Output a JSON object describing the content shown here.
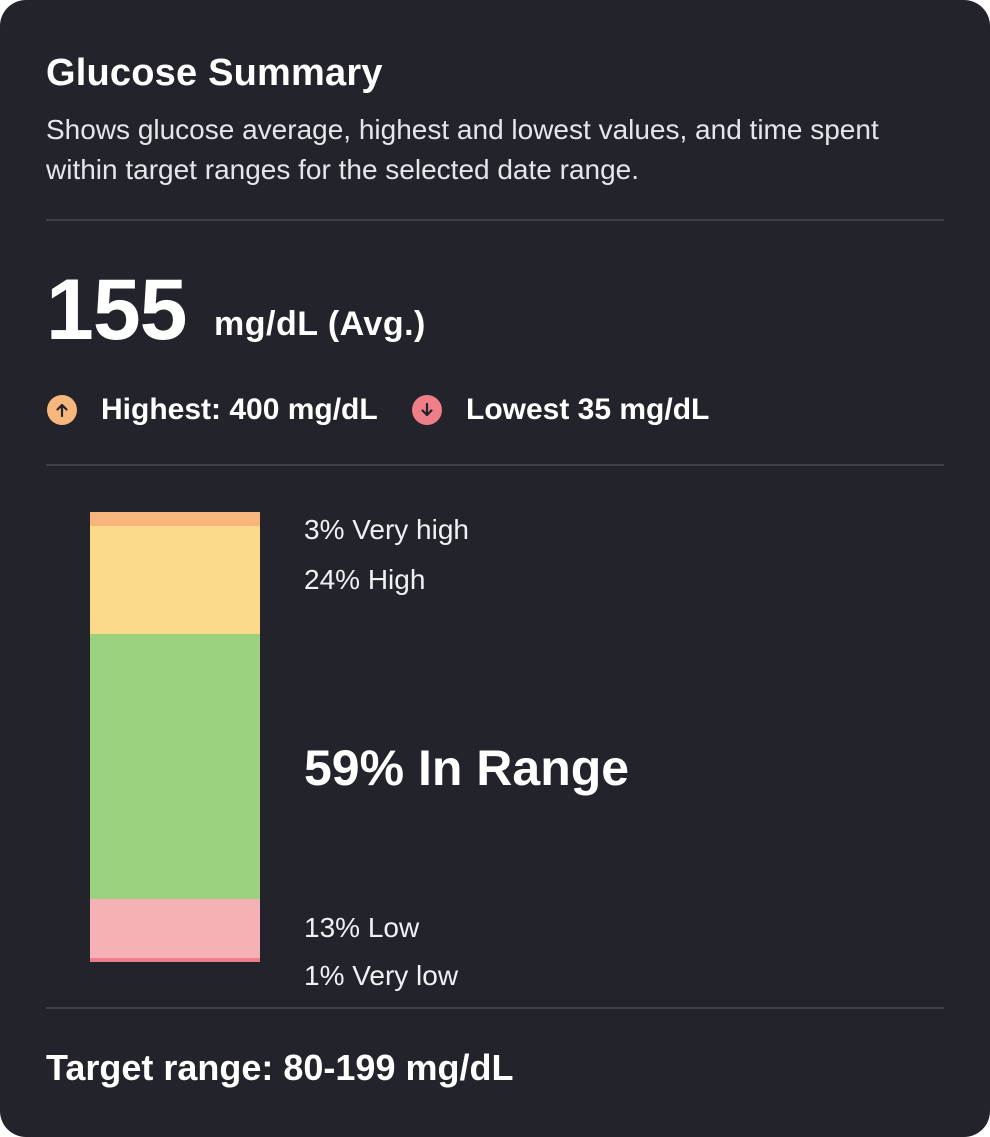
{
  "summary": {
    "title": "Glucose Summary",
    "description": "Shows glucose average, highest and lowest values, and time spent within target ranges for the selected date range."
  },
  "average": {
    "value": "155",
    "unit_label": "mg/dL (Avg.)"
  },
  "stats": {
    "highest": {
      "label": "Highest: 400 mg/dL",
      "icon": "arrow-up-icon",
      "color": "#f7b77c"
    },
    "lowest": {
      "label": "Lowest 35 mg/dL",
      "icon": "arrow-down-icon",
      "color": "#ee7f88"
    }
  },
  "time_in_range": {
    "ranges": [
      {
        "key": "very_high",
        "percent": 3,
        "label": "3% Very high",
        "color": "#f7b77c"
      },
      {
        "key": "high",
        "percent": 24,
        "label": "24% High",
        "color": "#fdda8a"
      },
      {
        "key": "in_range",
        "percent": 59,
        "label": "59% In Range",
        "color": "#9cd17f"
      },
      {
        "key": "low",
        "percent": 13,
        "label": "13% Low",
        "color": "#f6b1b6"
      },
      {
        "key": "very_low",
        "percent": 1,
        "label": "1% Very low",
        "color": "#ee7f88"
      }
    ]
  },
  "target_range": {
    "label": "Target range: 80-199 mg/dL"
  },
  "colors": {
    "background": "#22232b",
    "divider": "#3e3f49",
    "text": "#ffffff"
  }
}
